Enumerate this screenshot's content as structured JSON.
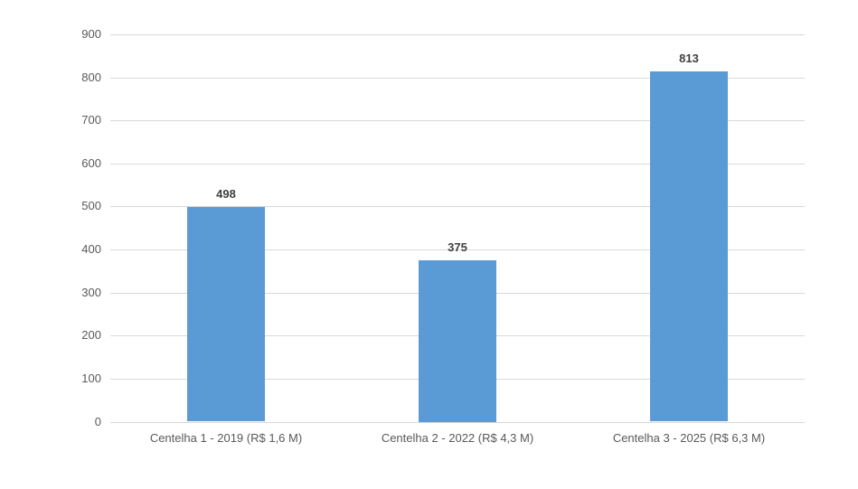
{
  "chart_data": {
    "type": "bar",
    "title": "",
    "xlabel": "",
    "ylabel": "",
    "categories": [
      "Centelha 1 - 2019 (R$ 1,6 M)",
      "Centelha 2 - 2022 (R$ 4,3 M)",
      "Centelha 3 - 2025 (R$ 6,3 M)"
    ],
    "values": [
      498,
      375,
      813
    ],
    "data_labels": [
      "498",
      "375",
      "813"
    ],
    "ylim": [
      0,
      900
    ],
    "yticks": [
      0,
      100,
      200,
      300,
      400,
      500,
      600,
      700,
      800,
      900
    ],
    "grid": true,
    "legend": false,
    "colors": {
      "bar_fill": "#5B9BD5",
      "gridline": "#D9D9D9",
      "axis_line": "#D9D9D9",
      "tick_label": "#595959",
      "category_label": "#595959",
      "data_label": "#3F3F3F",
      "background": "#FFFFFF"
    }
  }
}
